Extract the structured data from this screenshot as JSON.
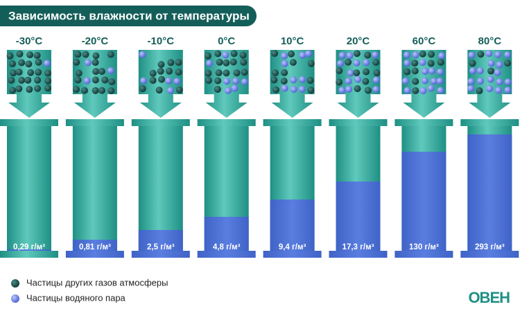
{
  "header": {
    "title": "Зависимость влажности от температуры"
  },
  "columns": [
    {
      "temperature": "-30°C",
      "humidity": "0,29 г/м³"
    },
    {
      "temperature": "-20°C",
      "humidity": "0,81 г/м³"
    },
    {
      "temperature": "-10°C",
      "humidity": "2,5 г/м³"
    },
    {
      "temperature": "0°C",
      "humidity": "4,8 г/м³"
    },
    {
      "temperature": "10°C",
      "humidity": "9,4 г/м³"
    },
    {
      "temperature": "20°C",
      "humidity": "17,3 г/м³"
    },
    {
      "temperature": "60°C",
      "humidity": "130 г/м³"
    },
    {
      "temperature": "80°C",
      "humidity": "293 г/м³"
    }
  ],
  "legend": [
    "Частицы других газов атмосферы",
    "Частицы водяного пара"
  ],
  "logo": "ОВЕН"
}
